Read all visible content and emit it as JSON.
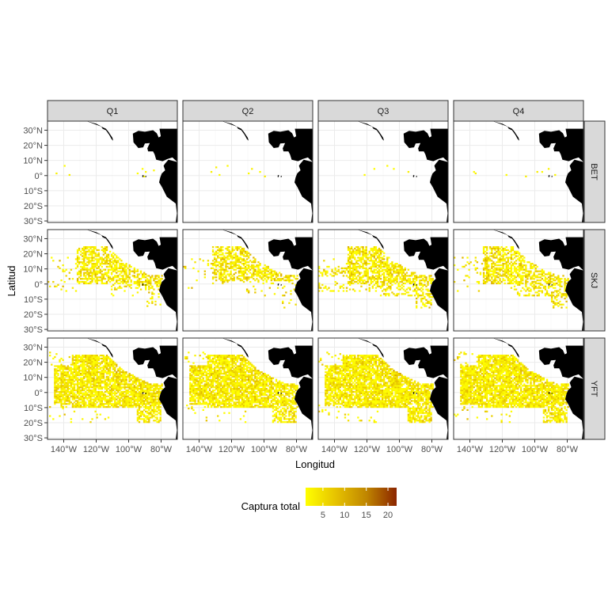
{
  "figure": {
    "xlabel": "Longitud",
    "ylabel": "Latitud",
    "quarters": [
      "Q1",
      "Q2",
      "Q3",
      "Q4"
    ],
    "species": [
      "BET",
      "SKJ",
      "YFT"
    ],
    "x_ticks": [
      {
        "lon": -140,
        "label": "140°W"
      },
      {
        "lon": -120,
        "label": "120°W"
      },
      {
        "lon": -100,
        "label": "100°W"
      },
      {
        "lon": -80,
        "label": "80°W"
      }
    ],
    "y_ticks": [
      {
        "lat": 30,
        "label": "30°N"
      },
      {
        "lat": 20,
        "label": "20°N"
      },
      {
        "lat": 10,
        "label": "10°N"
      },
      {
        "lat": 0,
        "label": "0°"
      },
      {
        "lat": -10,
        "label": "10°S"
      },
      {
        "lat": -20,
        "label": "20°S"
      },
      {
        "lat": -30,
        "label": "30°S"
      }
    ],
    "lon_range": [
      -150,
      -70
    ],
    "lat_range": [
      -31,
      36
    ],
    "legend": {
      "title": "Captura total",
      "ticks": [
        5,
        10,
        15,
        20
      ],
      "range": [
        1,
        22
      ],
      "colors": [
        "#ffff00",
        "#e6c200",
        "#c08600",
        "#8b2500"
      ]
    },
    "colors": {
      "land": "#000000",
      "strip": "#d9d9d9",
      "panel_border": "#333333",
      "grid": "#ebebeb"
    }
  },
  "chart_data": {
    "type": "heatmap",
    "facets_rows": "species",
    "facets_cols": "quarter",
    "value_name": "Captura total",
    "value_range": [
      1,
      22
    ],
    "approx_extent": {
      "BET": "sparse isolated cells, mostly 0-8°N between 140°W and 85°W, values ~1-3",
      "SKJ": "dense area 5°S-25°N, 130°W-80°W plus scatter to 150°W, values mostly 1-8, peak ~15",
      "YFT": "dense area 15°S-25°N, 145°W-78°W, values mostly 1-10"
    }
  }
}
